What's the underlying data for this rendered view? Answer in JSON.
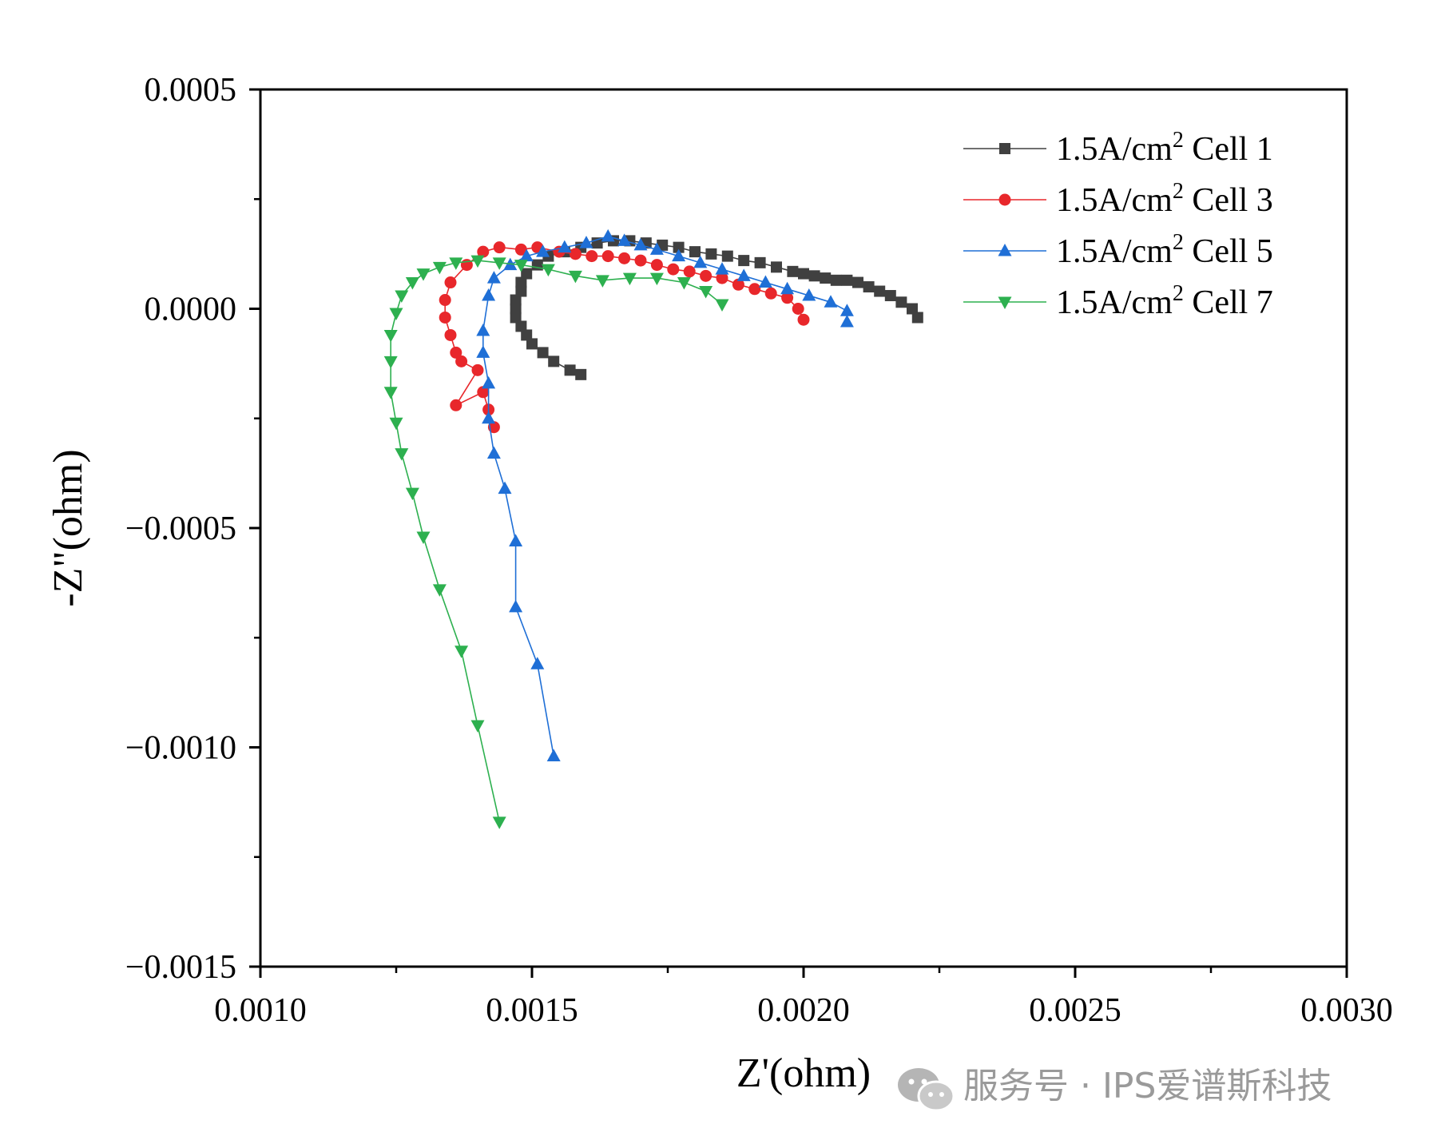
{
  "chart_data": {
    "type": "scatter",
    "title": "",
    "xlabel": "Z'(ohm)",
    "ylabel": "-Z\"(ohm)",
    "xlim": [
      0.001,
      0.003
    ],
    "ylim": [
      -0.0015,
      0.0005
    ],
    "xticks": [
      0.001,
      0.0015,
      0.002,
      0.0025,
      0.003
    ],
    "xtick_labels": [
      "0.0010",
      "0.0015",
      "0.0020",
      "0.0025",
      "0.0030"
    ],
    "yticks": [
      0.0005,
      0.0,
      -0.0005,
      -0.001,
      -0.0015
    ],
    "ytick_labels": [
      "0.0005",
      "0.0000",
      "−0.0005",
      "−0.0010",
      "−0.0015"
    ],
    "grid": false,
    "legend_position": "top-right",
    "series": [
      {
        "name": "1.5A/cm",
        "superscript": "2",
        "suffix": " Cell 1",
        "color": "#404040",
        "marker": "square",
        "x": [
          0.00159,
          0.00157,
          0.00154,
          0.00152,
          0.0015,
          0.00149,
          0.00148,
          0.00147,
          0.00147,
          0.00147,
          0.00148,
          0.00148,
          0.00149,
          0.00151,
          0.00153,
          0.00156,
          0.00159,
          0.00162,
          0.00165,
          0.00168,
          0.00171,
          0.00174,
          0.00177,
          0.0018,
          0.00183,
          0.00186,
          0.00189,
          0.00192,
          0.00195,
          0.00198,
          0.002,
          0.00202,
          0.00204,
          0.00206,
          0.00208,
          0.0021,
          0.00212,
          0.00214,
          0.00216,
          0.00218,
          0.0022,
          0.00221
        ],
        "y": [
          -0.00015,
          -0.00014,
          -0.00012,
          -0.0001,
          -8e-05,
          -6e-05,
          -4e-05,
          -2e-05,
          0.0,
          2e-05,
          4e-05,
          6e-05,
          8e-05,
          0.0001,
          0.00012,
          0.00013,
          0.00014,
          0.00015,
          0.000155,
          0.000155,
          0.00015,
          0.000145,
          0.00014,
          0.00013,
          0.000125,
          0.00012,
          0.00011,
          0.000105,
          9.5e-05,
          8.5e-05,
          8e-05,
          7.5e-05,
          7e-05,
          6.5e-05,
          6.5e-05,
          6e-05,
          5e-05,
          4e-05,
          3e-05,
          1.5e-05,
          0.0,
          -2e-05
        ]
      },
      {
        "name": "1.5A/cm",
        "superscript": "2",
        "suffix": " Cell 3",
        "color": "#e8272b",
        "marker": "circle",
        "x": [
          0.00143,
          0.00142,
          0.00141,
          0.00136,
          0.0014,
          0.00137,
          0.00136,
          0.00135,
          0.00134,
          0.00134,
          0.00135,
          0.00138,
          0.00141,
          0.00144,
          0.00148,
          0.00151,
          0.00155,
          0.00158,
          0.00161,
          0.00164,
          0.00167,
          0.0017,
          0.00173,
          0.00176,
          0.00179,
          0.00182,
          0.00185,
          0.00188,
          0.00191,
          0.00194,
          0.00197,
          0.00199,
          0.002
        ],
        "y": [
          -0.00027,
          -0.00023,
          -0.00019,
          -0.00022,
          -0.00014,
          -0.00012,
          -0.0001,
          -6e-05,
          -2e-05,
          2e-05,
          6e-05,
          0.0001,
          0.00013,
          0.00014,
          0.000135,
          0.00014,
          0.00013,
          0.000125,
          0.00012,
          0.00012,
          0.000115,
          0.00011,
          0.0001,
          9e-05,
          8.5e-05,
          7.5e-05,
          7e-05,
          5.5e-05,
          4.5e-05,
          3.5e-05,
          2.5e-05,
          0.0,
          -2.5e-05
        ]
      },
      {
        "name": "1.5A/cm",
        "superscript": "2",
        "suffix": " Cell 5",
        "color": "#1f6fd6",
        "marker": "triangle-up",
        "x": [
          0.00154,
          0.00151,
          0.00147,
          0.00147,
          0.00145,
          0.00143,
          0.00142,
          0.00142,
          0.00141,
          0.00141,
          0.00142,
          0.00143,
          0.00146,
          0.00149,
          0.00152,
          0.00156,
          0.0016,
          0.00164,
          0.00167,
          0.0017,
          0.00173,
          0.00177,
          0.00181,
          0.00185,
          0.00189,
          0.00193,
          0.00197,
          0.00201,
          0.00205,
          0.00208,
          0.00208
        ],
        "y": [
          -0.00102,
          -0.00081,
          -0.00068,
          -0.00053,
          -0.00041,
          -0.00033,
          -0.00025,
          -0.00017,
          -0.0001,
          -5e-05,
          3e-05,
          7e-05,
          0.0001,
          0.00012,
          0.00013,
          0.00014,
          0.00015,
          0.000165,
          0.000155,
          0.000145,
          0.000135,
          0.00012,
          0.000105,
          9e-05,
          7.5e-05,
          6e-05,
          4.5e-05,
          3e-05,
          1.5e-05,
          -5e-06,
          -3e-05
        ]
      },
      {
        "name": "1.5A/cm",
        "superscript": "2",
        "suffix": " Cell 7",
        "color": "#2db04f",
        "marker": "triangle-down",
        "x": [
          0.00144,
          0.0014,
          0.00137,
          0.00133,
          0.0013,
          0.00128,
          0.00126,
          0.00125,
          0.00124,
          0.00124,
          0.00124,
          0.00125,
          0.00126,
          0.00128,
          0.0013,
          0.00133,
          0.00136,
          0.0014,
          0.00144,
          0.00148,
          0.00153,
          0.00158,
          0.00163,
          0.00168,
          0.00173,
          0.00178,
          0.00182,
          0.00185
        ],
        "y": [
          -0.00117,
          -0.00095,
          -0.00078,
          -0.00064,
          -0.00052,
          -0.00042,
          -0.00033,
          -0.00026,
          -0.00019,
          -0.00012,
          -6e-05,
          -1e-05,
          3e-05,
          6e-05,
          8e-05,
          9.5e-05,
          0.000105,
          0.00011,
          0.000105,
          0.0001,
          9e-05,
          7.5e-05,
          6.5e-05,
          7e-05,
          7e-05,
          6e-05,
          4e-05,
          1e-05
        ]
      }
    ]
  },
  "watermark": {
    "text": "服务号 · IPS爱谱斯科技",
    "icon": "wechat-icon"
  }
}
